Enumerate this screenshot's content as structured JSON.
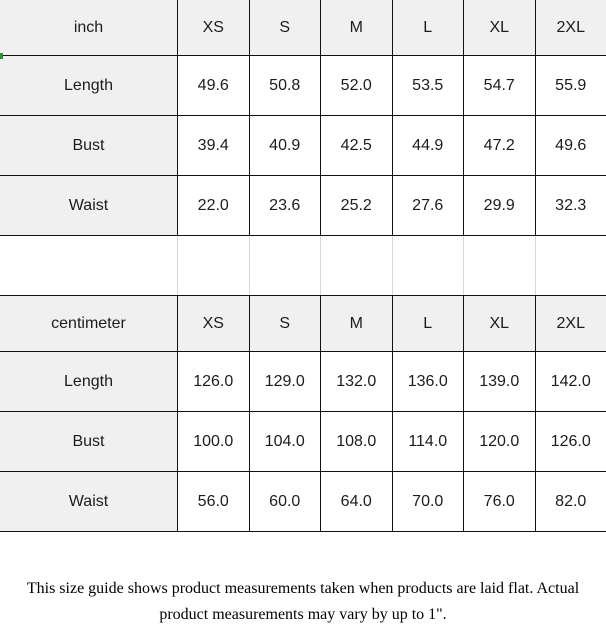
{
  "chart_data": [
    {
      "type": "table",
      "title": "inch",
      "columns": [
        "XS",
        "S",
        "M",
        "L",
        "XL",
        "2XL"
      ],
      "rows": [
        {
          "label": "Length",
          "values": [
            "49.6",
            "50.8",
            "52.0",
            "53.5",
            "54.7",
            "55.9"
          ]
        },
        {
          "label": "Bust",
          "values": [
            "39.4",
            "40.9",
            "42.5",
            "44.9",
            "47.2",
            "49.6"
          ]
        },
        {
          "label": "Waist",
          "values": [
            "22.0",
            "23.6",
            "25.2",
            "27.6",
            "29.9",
            "32.3"
          ]
        }
      ]
    },
    {
      "type": "table",
      "title": "centimeter",
      "columns": [
        "XS",
        "S",
        "M",
        "L",
        "XL",
        "2XL"
      ],
      "rows": [
        {
          "label": "Length",
          "values": [
            "126.0",
            "129.0",
            "132.0",
            "136.0",
            "139.0",
            "142.0"
          ]
        },
        {
          "label": "Bust",
          "values": [
            "100.0",
            "104.0",
            "108.0",
            "114.0",
            "120.0",
            "126.0"
          ]
        },
        {
          "label": "Waist",
          "values": [
            "56.0",
            "60.0",
            "64.0",
            "70.0",
            "76.0",
            "82.0"
          ]
        }
      ]
    }
  ],
  "footer": {
    "note": "This size guide shows product measurements taken when products are laid flat. Actual product measurements may vary by up to 1\"."
  },
  "colors": {
    "header_bg": "#f0f0f0",
    "grid_line": "#111111",
    "spacer_line": "#d8d8d8",
    "marker_green": "#3c8c3c"
  }
}
